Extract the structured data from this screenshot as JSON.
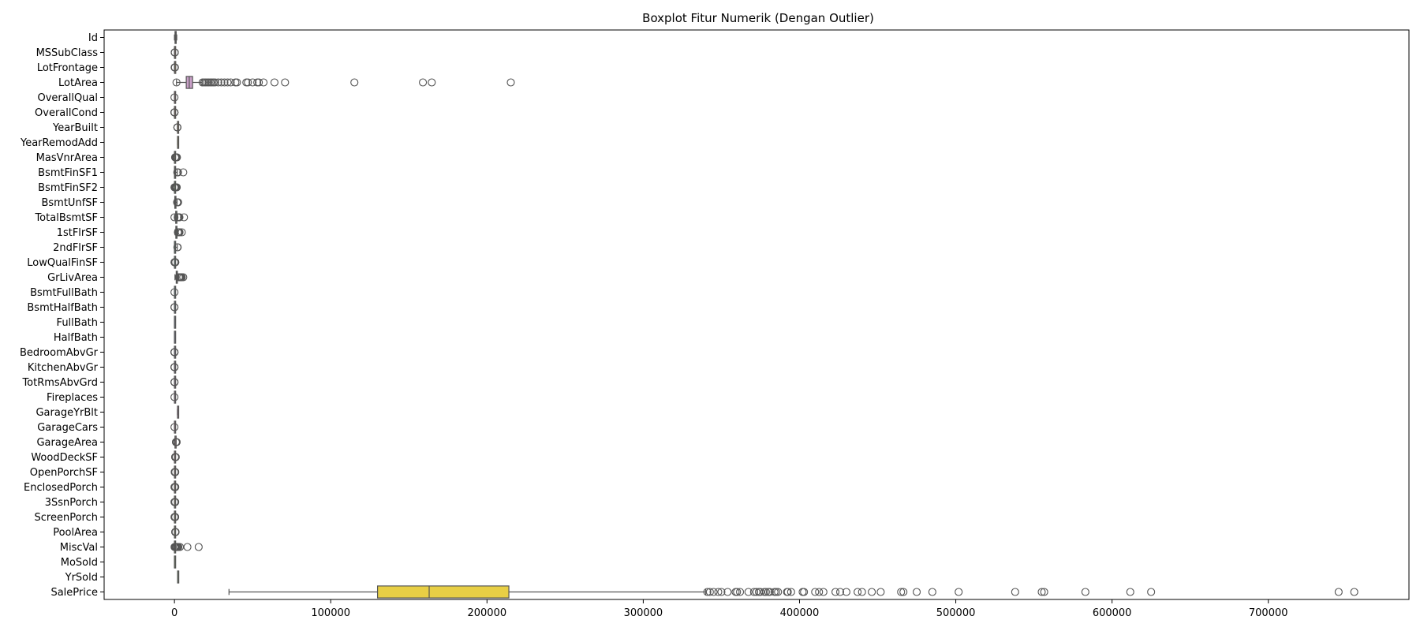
{
  "chart_data": {
    "type": "boxplot",
    "orientation": "horizontal",
    "title": "Boxplot Fitur Numerik (Dengan Outlier)",
    "xlabel": "",
    "ylabel": "",
    "xlim": [
      -45000,
      790000
    ],
    "x_ticks": [
      0,
      100000,
      200000,
      300000,
      400000,
      500000,
      600000,
      700000
    ],
    "x_tick_labels": [
      "0",
      "100000",
      "200000",
      "300000",
      "400000",
      "500000",
      "600000",
      "700000"
    ],
    "grid": false,
    "legend": "none",
    "features": [
      {
        "name": "Id",
        "color": "#e89a7f",
        "whisker_low": 1,
        "q1": 365,
        "median": 730,
        "q3": 1095,
        "whisker_high": 1460,
        "outliers": []
      },
      {
        "name": "MSSubClass",
        "color": "#e8a37a",
        "whisker_low": 20,
        "q1": 20,
        "median": 50,
        "q3": 70,
        "whisker_high": 145,
        "outliers": [
          160,
          180,
          190
        ]
      },
      {
        "name": "LotFrontage",
        "color": "#dfa96e",
        "whisker_low": 21,
        "q1": 59,
        "median": 69,
        "q3": 80,
        "whisker_high": 111,
        "outliers": [
          120,
          150,
          200,
          313
        ]
      },
      {
        "name": "LotArea",
        "color": "#c9a0c8",
        "whisker_low": 1300,
        "q1": 7554,
        "median": 9478,
        "q3": 11602,
        "whisker_high": 17671,
        "outliers": [
          1300,
          18000,
          19000,
          20000,
          21000,
          22000,
          23000,
          24000,
          25000,
          26000,
          28000,
          30000,
          32000,
          34000,
          36000,
          39000,
          40000,
          46000,
          47000,
          50000,
          53000,
          54000,
          57000,
          64000,
          70761,
          115149,
          159000,
          164660,
          215245
        ]
      },
      {
        "name": "OverallQual",
        "color": "#e68f8f",
        "whisker_low": 2,
        "q1": 5,
        "median": 6,
        "q3": 7,
        "whisker_high": 10,
        "outliers": [
          1
        ]
      },
      {
        "name": "OverallCond",
        "color": "#e3a074",
        "whisker_low": 3,
        "q1": 5,
        "median": 5,
        "q3": 6,
        "whisker_high": 7,
        "outliers": [
          1,
          2,
          8,
          9
        ]
      },
      {
        "name": "YearBuilt",
        "color": "#d9b072",
        "whisker_low": 1885,
        "q1": 1954,
        "median": 1973,
        "q3": 2000,
        "whisker_high": 2010,
        "outliers": [
          1872,
          1875,
          1880
        ]
      },
      {
        "name": "YearRemodAdd",
        "color": "#c8b66c",
        "whisker_low": 1950,
        "q1": 1967,
        "median": 1994,
        "q3": 2004,
        "whisker_high": 2010,
        "outliers": []
      },
      {
        "name": "MasVnrArea",
        "color": "#b7bb6a",
        "whisker_low": 0,
        "q1": 0,
        "median": 0,
        "q3": 166,
        "whisker_high": 415,
        "outliers": [
          420,
          500,
          600,
          700,
          800,
          900,
          1000,
          1129,
          1378,
          1600
        ]
      },
      {
        "name": "BsmtFinSF1",
        "color": "#a5bf69",
        "whisker_low": 0,
        "q1": 0,
        "median": 384,
        "q3": 712,
        "whisker_high": 1780,
        "outliers": [
          1800,
          2000,
          2188,
          2260,
          5644
        ]
      },
      {
        "name": "BsmtFinSF2",
        "color": "#93c26c",
        "whisker_low": 0,
        "q1": 0,
        "median": 0,
        "q3": 0,
        "whisker_high": 0,
        "outliers": [
          28,
          100,
          300,
          500,
          700,
          900,
          1127,
          1474
        ]
      },
      {
        "name": "BsmtUnfSF",
        "color": "#82c476",
        "whisker_low": 0,
        "q1": 223,
        "median": 478,
        "q3": 808,
        "whisker_high": 1685,
        "outliers": [
          1700,
          1800,
          1900,
          2000,
          2121,
          2336
        ]
      },
      {
        "name": "TotalBsmtSF",
        "color": "#74c582",
        "whisker_low": 105,
        "q1": 796,
        "median": 991,
        "q3": 1298,
        "whisker_high": 2046,
        "outliers": [
          0,
          2100,
          2200,
          2400,
          2600,
          3000,
          3200,
          6110
        ]
      },
      {
        "name": "1stFlrSF",
        "color": "#6cc691",
        "whisker_low": 334,
        "q1": 882,
        "median": 1087,
        "q3": 1391,
        "whisker_high": 2154,
        "outliers": [
          2200,
          2400,
          2600,
          2800,
          3000,
          3138,
          3228,
          4692
        ]
      },
      {
        "name": "2ndFlrSF",
        "color": "#6ac6a1",
        "whisker_low": 0,
        "q1": 0,
        "median": 0,
        "q3": 728,
        "whisker_high": 1818,
        "outliers": [
          1872,
          2065
        ]
      },
      {
        "name": "LowQualFinSF",
        "color": "#6cc5b1",
        "whisker_low": 0,
        "q1": 0,
        "median": 0,
        "q3": 0,
        "whisker_high": 0,
        "outliers": [
          53,
          80,
          120,
          200,
          300,
          390,
          450,
          513,
          572
        ]
      },
      {
        "name": "GrLivArea",
        "color": "#72c3c0",
        "whisker_low": 334,
        "q1": 1130,
        "median": 1464,
        "q3": 1777,
        "whisker_high": 2747,
        "outliers": [
          2800,
          3000,
          3200,
          3400,
          3600,
          3800,
          4316,
          4476,
          4676,
          5642
        ]
      },
      {
        "name": "BsmtFullBath",
        "color": "#7cc1cf",
        "whisker_low": 0,
        "q1": 0,
        "median": 0,
        "q3": 1,
        "whisker_high": 2,
        "outliers": [
          3
        ]
      },
      {
        "name": "BsmtHalfBath",
        "color": "#89bedb",
        "whisker_low": 0,
        "q1": 0,
        "median": 0,
        "q3": 0,
        "whisker_high": 0,
        "outliers": [
          1,
          2
        ]
      },
      {
        "name": "FullBath",
        "color": "#98bae4",
        "whisker_low": 0,
        "q1": 1,
        "median": 2,
        "q3": 2,
        "whisker_high": 3,
        "outliers": []
      },
      {
        "name": "HalfBath",
        "color": "#a8b5ea",
        "whisker_low": 0,
        "q1": 0,
        "median": 0,
        "q3": 1,
        "whisker_high": 2,
        "outliers": []
      },
      {
        "name": "BedroomAbvGr",
        "color": "#b8b0ec",
        "whisker_low": 1,
        "q1": 2,
        "median": 3,
        "q3": 3,
        "whisker_high": 4,
        "outliers": [
          0,
          5,
          6,
          8
        ]
      },
      {
        "name": "KitchenAbvGr",
        "color": "#c7abea",
        "whisker_low": 1,
        "q1": 1,
        "median": 1,
        "q3": 1,
        "whisker_high": 1,
        "outliers": [
          0,
          2,
          3
        ]
      },
      {
        "name": "TotRmsAbvGrd",
        "color": "#d4a7e4",
        "whisker_low": 2,
        "q1": 5,
        "median": 6,
        "q3": 7,
        "whisker_high": 10,
        "outliers": [
          11,
          12,
          14
        ]
      },
      {
        "name": "Fireplaces",
        "color": "#dfa3da",
        "whisker_low": 0,
        "q1": 0,
        "median": 1,
        "q3": 1,
        "whisker_high": 2,
        "outliers": [
          3
        ]
      },
      {
        "name": "GarageYrBlt",
        "color": "#e7a1cd",
        "whisker_low": 1900,
        "q1": 1961,
        "median": 1980,
        "q3": 2002,
        "whisker_high": 2010,
        "outliers": []
      },
      {
        "name": "GarageCars",
        "color": "#eca0bf",
        "whisker_low": 0,
        "q1": 1,
        "median": 2,
        "q3": 2,
        "whisker_high": 3,
        "outliers": [
          4
        ]
      },
      {
        "name": "GarageArea",
        "color": "#eea0b0",
        "whisker_low": 0,
        "q1": 334,
        "median": 480,
        "q3": 576,
        "whisker_high": 938,
        "outliers": [
          954,
          1000,
          1100,
          1200,
          1418
        ]
      },
      {
        "name": "WoodDeckSF",
        "color": "#eca2a0",
        "whisker_low": 0,
        "q1": 0,
        "median": 0,
        "q3": 168,
        "whisker_high": 420,
        "outliers": [
          428,
          500,
          600,
          700,
          857
        ]
      },
      {
        "name": "OpenPorchSF",
        "color": "#e7a691",
        "whisker_low": 0,
        "q1": 0,
        "median": 25,
        "q3": 68,
        "whisker_high": 170,
        "outliers": [
          172,
          200,
          250,
          300,
          400,
          547
        ]
      },
      {
        "name": "EnclosedPorch",
        "color": "#dfac84",
        "whisker_low": 0,
        "q1": 0,
        "median": 0,
        "q3": 0,
        "whisker_high": 0,
        "outliers": [
          19,
          100,
          200,
          300,
          386,
          552
        ]
      },
      {
        "name": "3SsnPorch",
        "color": "#d4b279",
        "whisker_low": 0,
        "q1": 0,
        "median": 0,
        "q3": 0,
        "whisker_high": 0,
        "outliers": [
          23,
          150,
          245,
          320,
          508
        ]
      },
      {
        "name": "ScreenPorch",
        "color": "#c8b773",
        "whisker_low": 0,
        "q1": 0,
        "median": 0,
        "q3": 0,
        "whisker_high": 0,
        "outliers": [
          40,
          120,
          200,
          300,
          440,
          480
        ]
      },
      {
        "name": "PoolArea",
        "color": "#bbbb71",
        "whisker_low": 0,
        "q1": 0,
        "median": 0,
        "q3": 0,
        "whisker_high": 0,
        "outliers": [
          480,
          512,
          648,
          738
        ]
      },
      {
        "name": "MiscVal",
        "color": "#adbe73",
        "whisker_low": 0,
        "q1": 0,
        "median": 0,
        "q3": 0,
        "whisker_high": 0,
        "outliers": [
          54,
          400,
          600,
          1000,
          1500,
          2000,
          2500,
          3500,
          8300,
          15500
        ]
      },
      {
        "name": "MoSold",
        "color": "#a0c07a",
        "whisker_low": 1,
        "q1": 5,
        "median": 6,
        "q3": 8,
        "whisker_high": 12,
        "outliers": []
      },
      {
        "name": "YrSold",
        "color": "#93c283",
        "whisker_low": 2006,
        "q1": 2007,
        "median": 2008,
        "q3": 2009,
        "whisker_high": 2010,
        "outliers": []
      },
      {
        "name": "SalePrice",
        "color": "#e8cf45",
        "whisker_low": 34900,
        "q1": 129975,
        "median": 163000,
        "q3": 214000,
        "whisker_high": 340000,
        "outliers": [
          341000,
          342643,
          345000,
          348000,
          350000,
          354000,
          359100,
          360000,
          361919,
          367294,
          370878,
          372402,
          374000,
          375000,
          377426,
          378500,
          380000,
          381000,
          383970,
          385000,
          386250,
          392000,
          392500,
          394617,
          402000,
          402861,
          410000,
          412500,
          415298,
          423000,
          426000,
          430000,
          437154,
          440000,
          446261,
          451950,
          465000,
          466500,
          475000,
          485000,
          501837,
          538000,
          555000,
          556581,
          582933,
          611657,
          625000,
          745000,
          755000
        ]
      }
    ]
  }
}
